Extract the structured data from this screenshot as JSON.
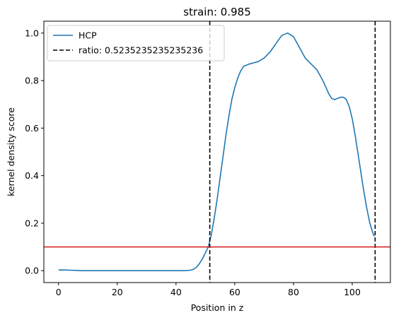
{
  "chart_data": {
    "type": "line",
    "title": "strain: 0.985",
    "xlabel": "Position in z",
    "ylabel": "kernel density score",
    "xlim": [
      -5,
      113
    ],
    "ylim": [
      -0.05,
      1.05
    ],
    "x_ticks": [
      0,
      20,
      40,
      60,
      80,
      100
    ],
    "y_ticks": [
      0.0,
      0.2,
      0.4,
      0.6,
      0.8,
      1.0
    ],
    "x_tick_labels": [
      "0",
      "20",
      "40",
      "60",
      "80",
      "100"
    ],
    "y_tick_labels": [
      "0.0",
      "0.2",
      "0.4",
      "0.6",
      "0.8",
      "1.0"
    ],
    "grid": false,
    "legend_position": "upper-left",
    "series": [
      {
        "name": "HCP",
        "color": "#1f77b4",
        "style": "solid",
        "points": [
          [
            0,
            0.003
          ],
          [
            2,
            0.003
          ],
          [
            4,
            0.002
          ],
          [
            6,
            0.001
          ],
          [
            8,
            0.0
          ],
          [
            20,
            0.0
          ],
          [
            40,
            0.0
          ],
          [
            43,
            0.0
          ],
          [
            45,
            0.002
          ],
          [
            46,
            0.006
          ],
          [
            47,
            0.015
          ],
          [
            48,
            0.03
          ],
          [
            49,
            0.05
          ],
          [
            50,
            0.075
          ],
          [
            51,
            0.1
          ],
          [
            52,
            0.15
          ],
          [
            53,
            0.22
          ],
          [
            54,
            0.3
          ],
          [
            55,
            0.39
          ],
          [
            56,
            0.48
          ],
          [
            57,
            0.57
          ],
          [
            58,
            0.65
          ],
          [
            59,
            0.72
          ],
          [
            60,
            0.77
          ],
          [
            61,
            0.81
          ],
          [
            62,
            0.84
          ],
          [
            63,
            0.86
          ],
          [
            64,
            0.865
          ],
          [
            65,
            0.87
          ],
          [
            66,
            0.873
          ],
          [
            68,
            0.88
          ],
          [
            70,
            0.895
          ],
          [
            72,
            0.92
          ],
          [
            74,
            0.955
          ],
          [
            76,
            0.99
          ],
          [
            78,
            1.0
          ],
          [
            80,
            0.985
          ],
          [
            82,
            0.94
          ],
          [
            84,
            0.895
          ],
          [
            86,
            0.87
          ],
          [
            88,
            0.845
          ],
          [
            90,
            0.8
          ],
          [
            92,
            0.745
          ],
          [
            93,
            0.725
          ],
          [
            94,
            0.72
          ],
          [
            95,
            0.725
          ],
          [
            96,
            0.73
          ],
          [
            97,
            0.73
          ],
          [
            98,
            0.72
          ],
          [
            99,
            0.69
          ],
          [
            100,
            0.64
          ],
          [
            101,
            0.57
          ],
          [
            102,
            0.49
          ],
          [
            103,
            0.41
          ],
          [
            104,
            0.33
          ],
          [
            105,
            0.26
          ],
          [
            106,
            0.2
          ],
          [
            107,
            0.16
          ],
          [
            107.5,
            0.145
          ]
        ]
      },
      {
        "name": "ratio: 0.5235235235235236",
        "color": "#000000",
        "style": "dashed",
        "vertical_lines_x": [
          51.5,
          107.8
        ]
      }
    ],
    "threshold_line": {
      "y": 0.1,
      "color": "#d62728"
    }
  }
}
